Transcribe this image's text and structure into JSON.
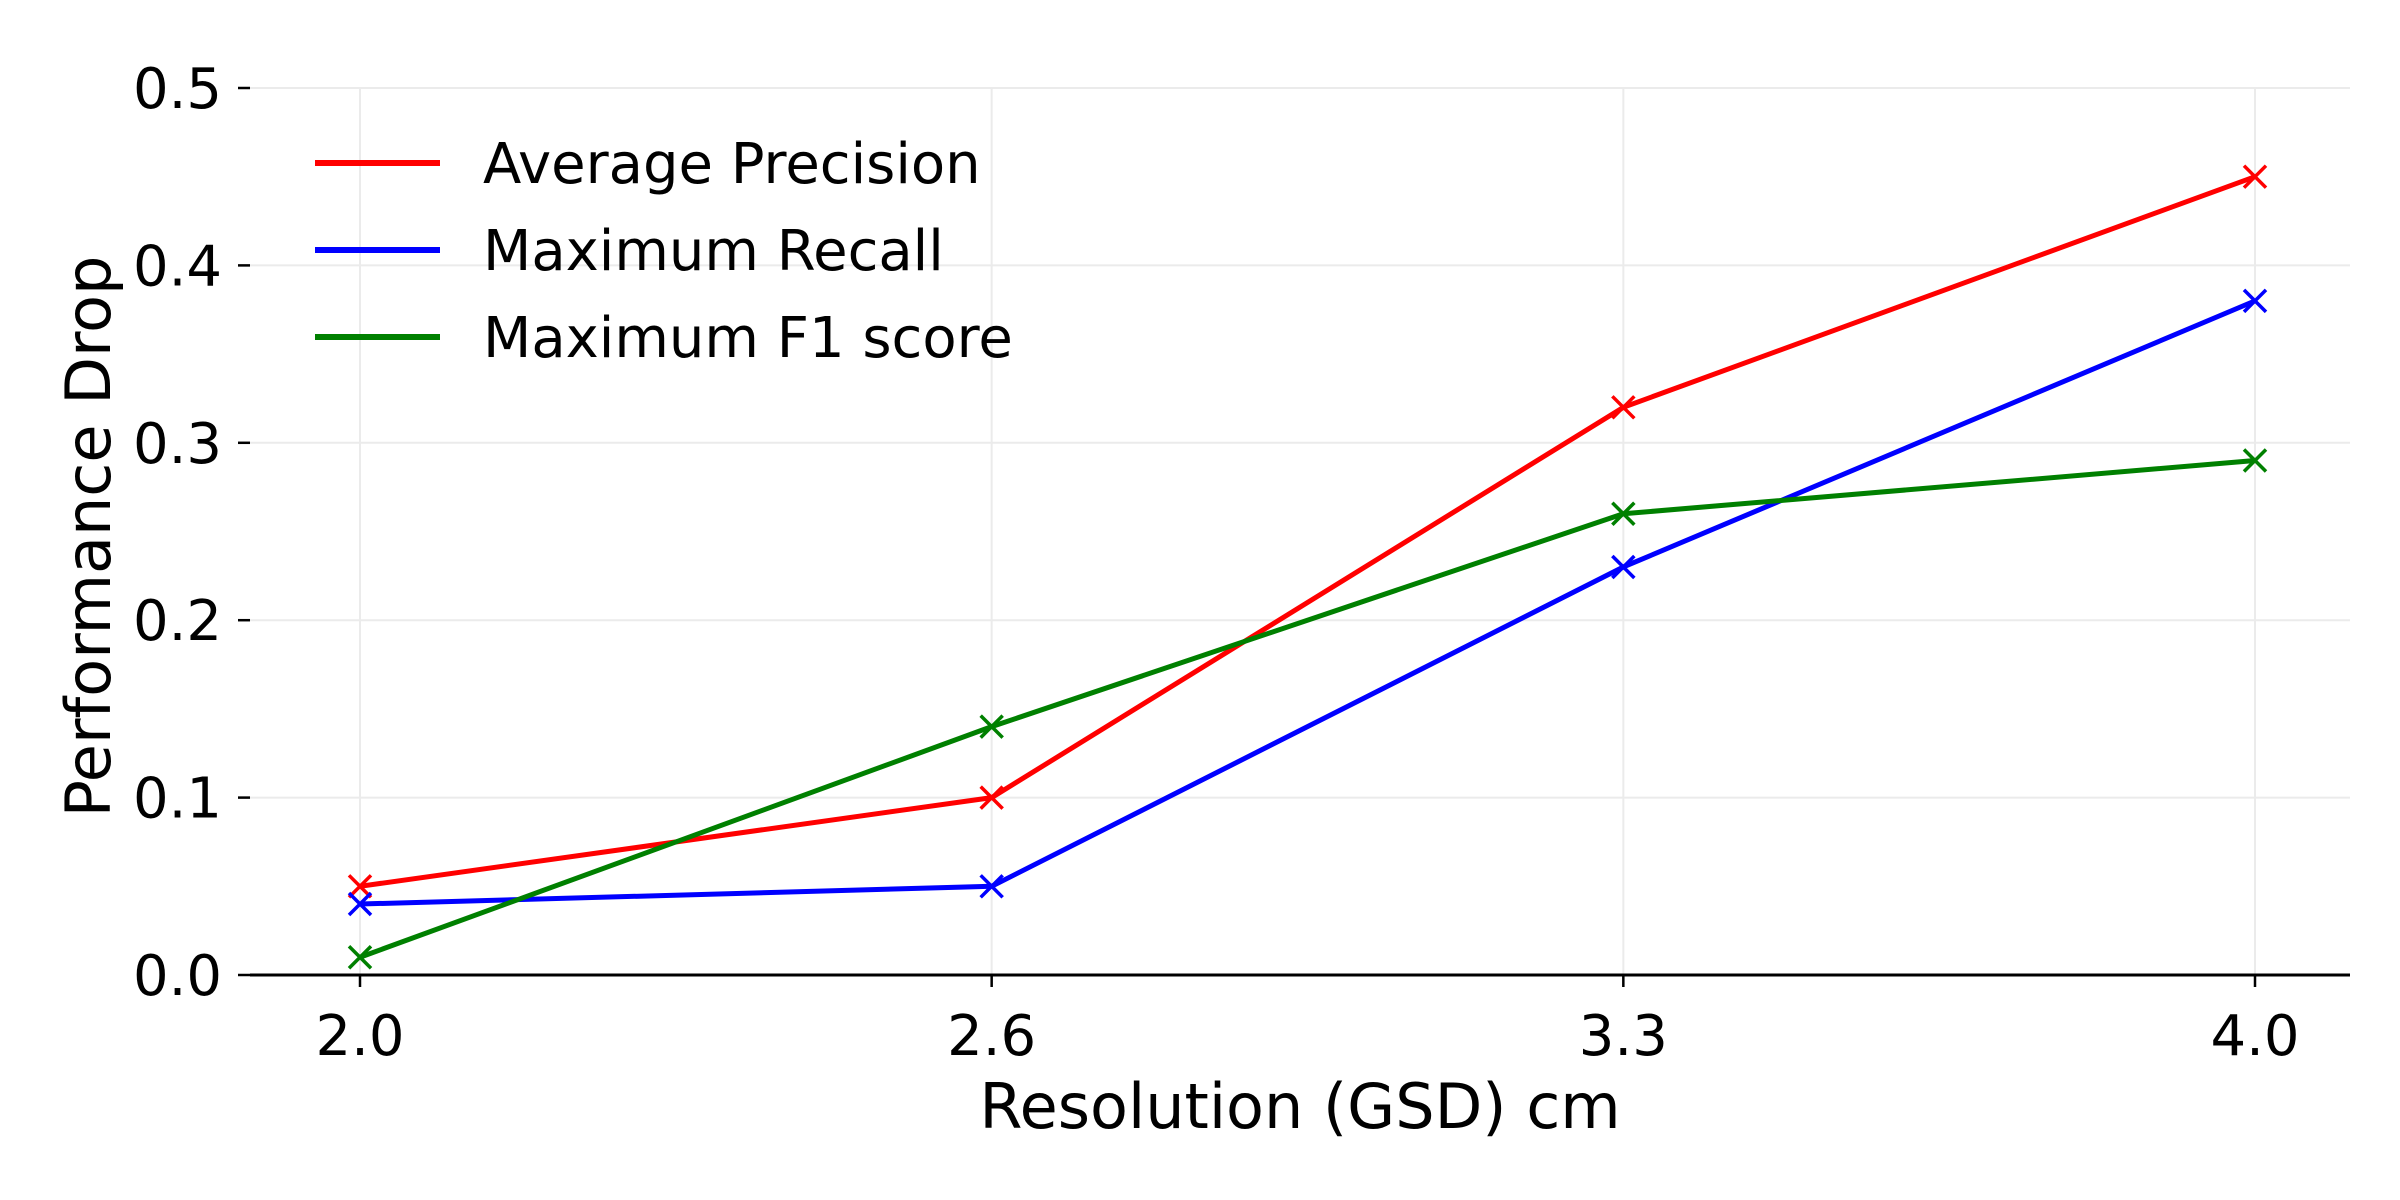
{
  "chart_data": {
    "type": "line",
    "title": "",
    "xlabel": "Resolution (GSD) cm",
    "ylabel": "Performance Drop",
    "categories": [
      "2.0",
      "2.6",
      "3.3",
      "4.0"
    ],
    "ylim": [
      0.0,
      0.5
    ],
    "yticks": [
      "0.0",
      "0.1",
      "0.2",
      "0.3",
      "0.4",
      "0.5"
    ],
    "grid": true,
    "legend_position": "top-left",
    "marker": "x",
    "series": [
      {
        "name": "Average Precision",
        "color": "#ff0000",
        "values": [
          0.05,
          0.1,
          0.32,
          0.45
        ]
      },
      {
        "name": "Maximum Recall",
        "color": "#0000ff",
        "values": [
          0.04,
          0.05,
          0.23,
          0.38
        ]
      },
      {
        "name": "Maximum F1 score",
        "color": "#008000",
        "values": [
          0.01,
          0.14,
          0.26,
          0.29
        ]
      }
    ]
  }
}
